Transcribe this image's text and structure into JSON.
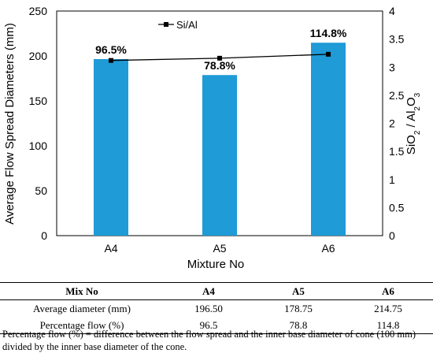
{
  "chart_data": {
    "type": "bar+line",
    "categories": [
      "A4",
      "A5",
      "A6"
    ],
    "series": [
      {
        "kind": "bar",
        "axis": "left",
        "values": [
          196.5,
          178.75,
          214.75
        ],
        "color": "#1f9bd7",
        "labels": [
          "96.5%",
          "78.8%",
          "114.8%"
        ]
      },
      {
        "kind": "line",
        "axis": "right",
        "name": "Si/Al",
        "values": [
          3.12,
          3.16,
          3.23
        ],
        "color": "#000000",
        "marker": "square"
      }
    ],
    "xlabel": "Mixture No",
    "ylabel": "Average Flow Spread Diameters (mm)",
    "ylim": [
      0,
      250
    ],
    "yticks": [
      0,
      50,
      100,
      150,
      200,
      250
    ],
    "y2label": {
      "prefix": "SiO",
      "sub1": "2",
      "mid": " / Al",
      "sub2": "2",
      "after": "O",
      "sub3": "3"
    },
    "y2lim": [
      0,
      4
    ],
    "y2ticks": [
      "0",
      "0.5",
      "1",
      "1.5",
      "2",
      "2.5",
      "3",
      "3.5",
      "4"
    ],
    "legend": {
      "placement": "top-left",
      "entry": "Si/Al"
    }
  },
  "table": {
    "headers": [
      "Mix No",
      "A4",
      "A5",
      "A6"
    ],
    "rows": [
      [
        "Average diameter (mm)",
        "196.50",
        "178.75",
        "214.75"
      ],
      [
        "Percentage flow (%)",
        "96.5",
        "78.8",
        "114.8"
      ]
    ],
    "footnote": "Percentage flow (%) = difference between the flow spread and the inner base diameter of cone (100 mm) divided by the inner base diameter of the cone."
  }
}
